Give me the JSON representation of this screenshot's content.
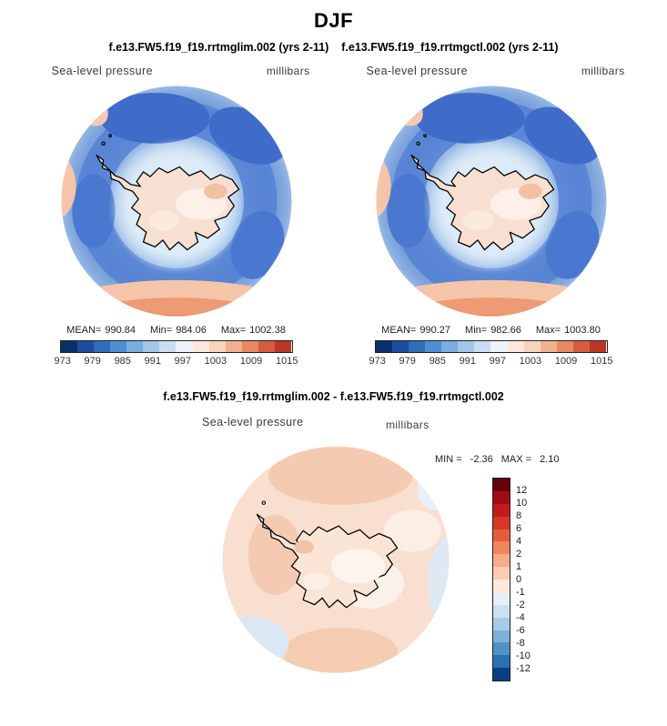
{
  "page": {
    "title": "DJF",
    "case_left": "f.e13.FW5.f19_f19.rrtmglim.002 (yrs 2-11)",
    "case_right": "f.e13.FW5.f19_f19.rrtmgctl.002 (yrs 2-11)",
    "diff_title": "f.e13.FW5.f19_f19.rrtmglim.002 - f.e13.FW5.f19_f19.rrtmgctl.002"
  },
  "panels": [
    {
      "field": "Sea-level pressure",
      "units": "millibars",
      "mean_label": "MEAN=",
      "mean": "990.84",
      "min_label": "Min=",
      "min": "984.06",
      "max_label": "Max=",
      "max": "1002.38"
    },
    {
      "field": "Sea-level pressure",
      "units": "millibars",
      "mean_label": "MEAN=",
      "mean": "990.27",
      "min_label": "Min=",
      "min": "982.66",
      "max_label": "Max=",
      "max": "1003.80"
    }
  ],
  "diff": {
    "field": "Sea-level pressure",
    "units": "millibars",
    "min_label": "MIN =",
    "min": "-2.36",
    "max_label": "MAX =",
    "max": "2.10"
  },
  "colorbars": {
    "slp_ticks": [
      "973",
      "979",
      "985",
      "991",
      "997",
      "1003",
      "1009",
      "1015"
    ],
    "slp_colors": [
      "#0a2f6e",
      "#1d4da0",
      "#2f6cba",
      "#4f8ed2",
      "#7aace0",
      "#a2c5ea",
      "#c9ddf2",
      "#eef3f9",
      "#fbe7db",
      "#f8d2bb",
      "#f3b091",
      "#e98862",
      "#d65c41",
      "#bd3525"
    ],
    "diff_ticks": [
      "12",
      "10",
      "8",
      "6",
      "4",
      "2",
      "1",
      "0",
      "-1",
      "-2",
      "-4",
      "-6",
      "-8",
      "-10",
      "-12"
    ],
    "diff_colors": [
      "#67000d",
      "#9e0d14",
      "#c01a1f",
      "#d63826",
      "#e55d3f",
      "#f0855e",
      "#f7ab87",
      "#fccdb3",
      "#fdeadd",
      "#e7f0f8",
      "#cde0f1",
      "#a8cce5",
      "#7db1d9",
      "#5192c7",
      "#2a70b3",
      "#0a3f86"
    ]
  },
  "chart_data": [
    {
      "type": "heatmap",
      "title": "f.e13.FW5.f19_f19.rrtmglim.002 (yrs 2-11)",
      "variable": "Sea-level pressure",
      "units": "millibars",
      "projection": "south polar stereographic (Antarctica)",
      "stats": {
        "mean": 990.84,
        "min": 984.06,
        "max": 1002.38
      },
      "colorbar_ticks": [
        973,
        979,
        985,
        991,
        997,
        1003,
        1009,
        1015
      ],
      "palette": "blue-red diverging",
      "legend_position": "bottom"
    },
    {
      "type": "heatmap",
      "title": "f.e13.FW5.f19_f19.rrtmgctl.002 (yrs 2-11)",
      "variable": "Sea-level pressure",
      "units": "millibars",
      "projection": "south polar stereographic (Antarctica)",
      "stats": {
        "mean": 990.27,
        "min": 982.66,
        "max": 1003.8
      },
      "colorbar_ticks": [
        973,
        979,
        985,
        991,
        997,
        1003,
        1009,
        1015
      ],
      "palette": "blue-red diverging",
      "legend_position": "bottom"
    },
    {
      "type": "heatmap",
      "title": "f.e13.FW5.f19_f19.rrtmglim.002 - f.e13.FW5.f19_f19.rrtmgctl.002",
      "variable": "Sea-level pressure",
      "units": "millibars",
      "projection": "south polar stereographic (Antarctica)",
      "stats": {
        "min": -2.36,
        "max": 2.1
      },
      "colorbar_ticks": [
        12,
        10,
        8,
        6,
        4,
        2,
        1,
        0,
        -1,
        -2,
        -4,
        -6,
        -8,
        -10,
        -12
      ],
      "palette": "blue-red diverging",
      "legend_position": "right"
    }
  ]
}
